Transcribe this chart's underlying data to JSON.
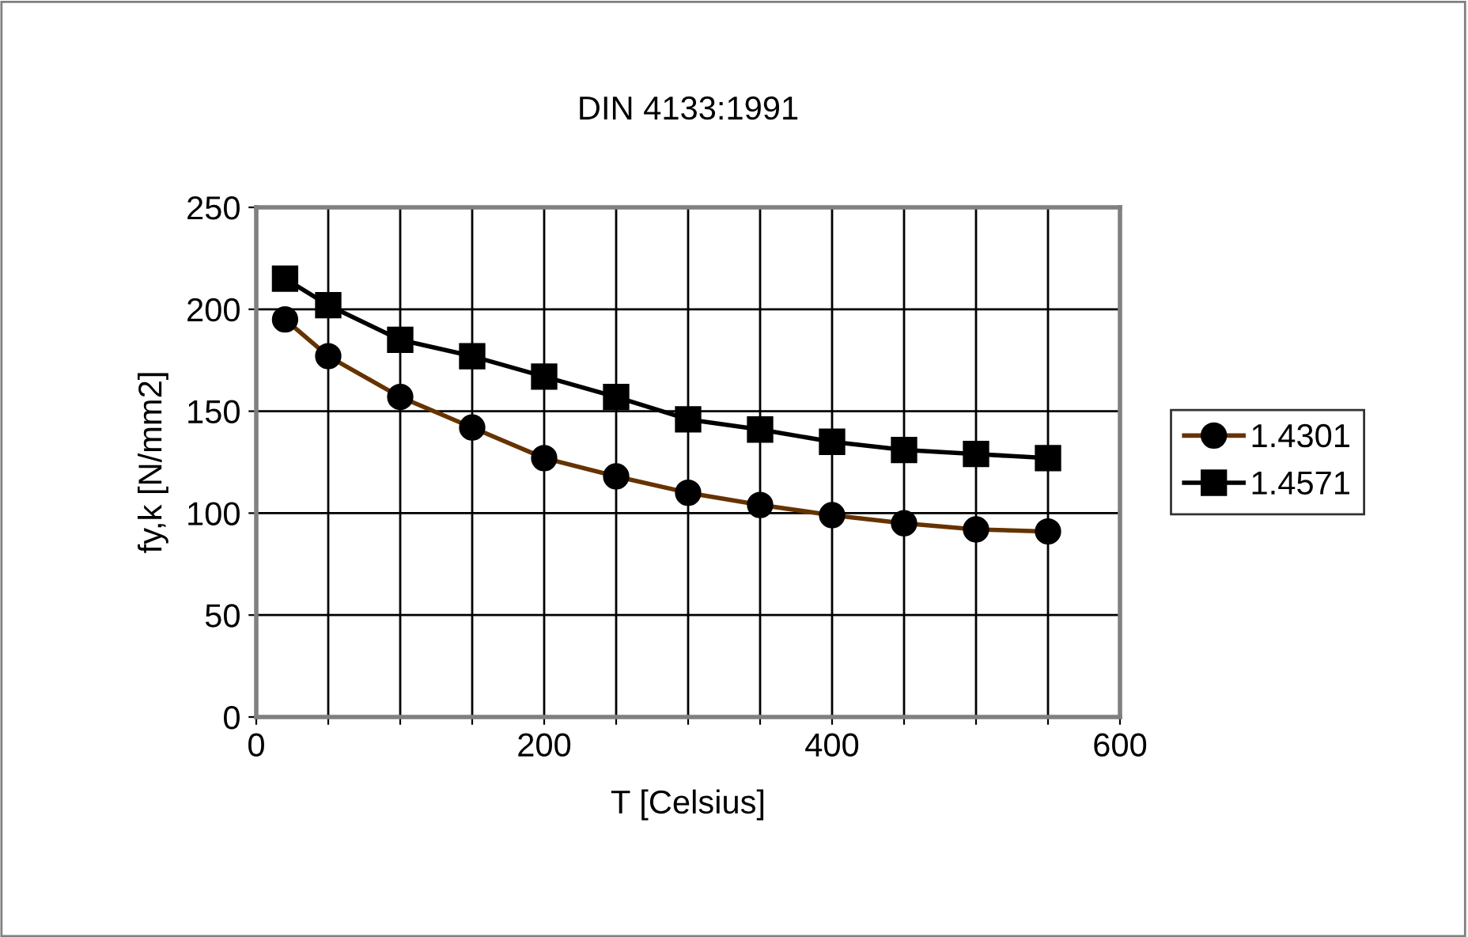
{
  "chart_data": {
    "type": "line",
    "title": "DIN 4133:1991",
    "xlabel": "T [Celsius]",
    "ylabel": "fy,k [N/mm2]",
    "x": [
      20,
      50,
      100,
      150,
      200,
      250,
      300,
      350,
      400,
      450,
      500,
      550
    ],
    "series": [
      {
        "name": "1.4301",
        "color": "#663300",
        "marker": "circle",
        "values": [
          195,
          177,
          157,
          142,
          127,
          118,
          110,
          104,
          99,
          95,
          92,
          91
        ]
      },
      {
        "name": "1.4571",
        "color": "#000000",
        "marker": "square",
        "values": [
          215,
          202,
          185,
          177,
          167,
          157,
          146,
          141,
          135,
          131,
          129,
          127
        ]
      }
    ],
    "xlim": [
      0,
      600
    ],
    "xticks": [
      0,
      {
        "value": 50,
        "label": null
      },
      {
        "value": 100,
        "label": null
      },
      {
        "value": 150,
        "label": null
      },
      200,
      {
        "value": 250,
        "label": null
      },
      {
        "value": 300,
        "label": null
      },
      {
        "value": 350,
        "label": null
      },
      400,
      {
        "value": 450,
        "label": null
      },
      {
        "value": 500,
        "label": null
      },
      {
        "value": 550,
        "label": null
      },
      600
    ],
    "ylim": [
      0,
      250
    ],
    "yticks": [
      0,
      50,
      100,
      150,
      200,
      250
    ],
    "grid": true,
    "legend": "right",
    "line_style": "solid"
  }
}
